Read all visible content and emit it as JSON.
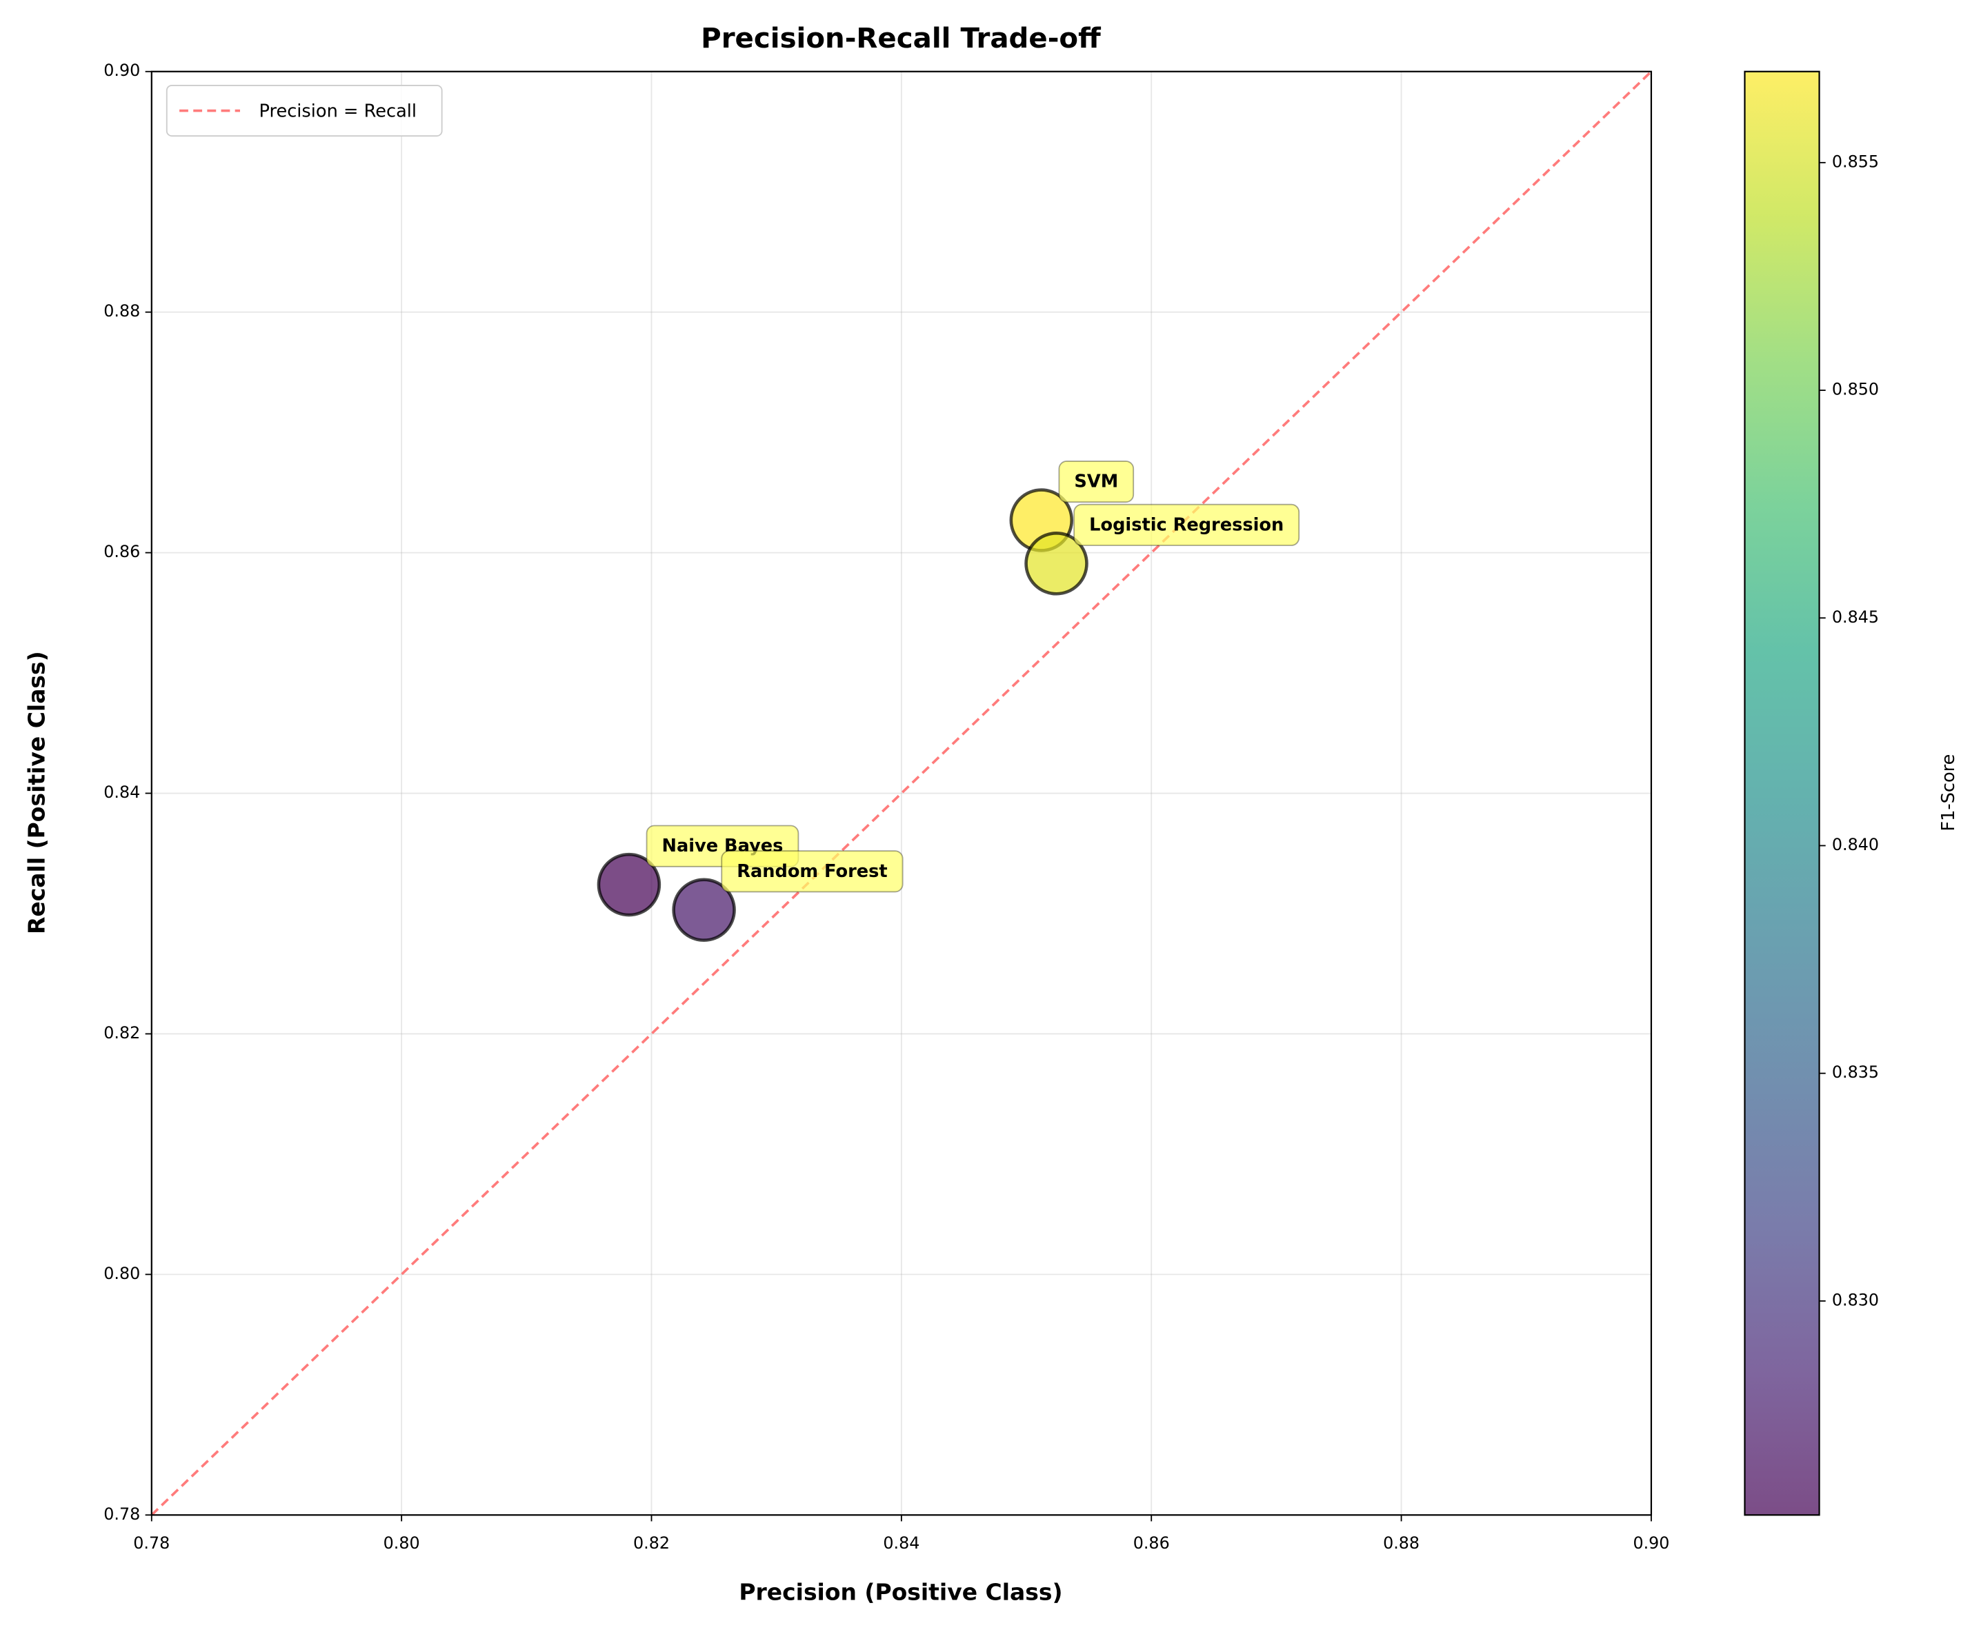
{
  "chart_data": {
    "type": "scatter",
    "title": "Precision-Recall Trade-off",
    "x_label": "Precision (Positive Class)",
    "y_label": "Recall (Positive Class)",
    "xlim": [
      0.78,
      0.9
    ],
    "ylim": [
      0.78,
      0.9
    ],
    "xticks": [
      0.78,
      {
        "value": 0.8,
        "label": "0.80"
      },
      0.82,
      0.84,
      0.86,
      0.88,
      {
        "value": 0.9,
        "label": "0.90"
      }
    ],
    "yticks": [
      0.78,
      {
        "value": 0.8,
        "label": "0.80"
      },
      0.82,
      0.84,
      0.86,
      0.88,
      {
        "value": 0.9,
        "label": "0.90"
      }
    ],
    "grid": true,
    "points": [
      {
        "name": "Naive Bayes",
        "precision": 0.8182,
        "recall": 0.8324,
        "f1": 0.8253
      },
      {
        "name": "Random Forest",
        "precision": 0.8242,
        "recall": 0.8303,
        "f1": 0.8272
      },
      {
        "name": "SVM",
        "precision": 0.8512,
        "recall": 0.8627,
        "f1": 0.857
      },
      {
        "name": "Logistic Regression",
        "precision": 0.8524,
        "recall": 0.8591,
        "f1": 0.8557
      }
    ],
    "annotation_color": "#ffff66",
    "reference_line": {
      "label": "Precision = Recall",
      "color": "#ff7b7b"
    },
    "legend_position": "upper left",
    "colorbar": {
      "label": "F1-Score",
      "colormap": "viridis",
      "clim": [
        0.8253,
        0.857
      ],
      "ticks": [
        {
          "value": 0.83,
          "label": "0.830"
        },
        0.835,
        {
          "value": 0.84,
          "label": "0.840"
        },
        0.845,
        {
          "value": 0.85,
          "label": "0.850"
        },
        0.855
      ]
    }
  }
}
